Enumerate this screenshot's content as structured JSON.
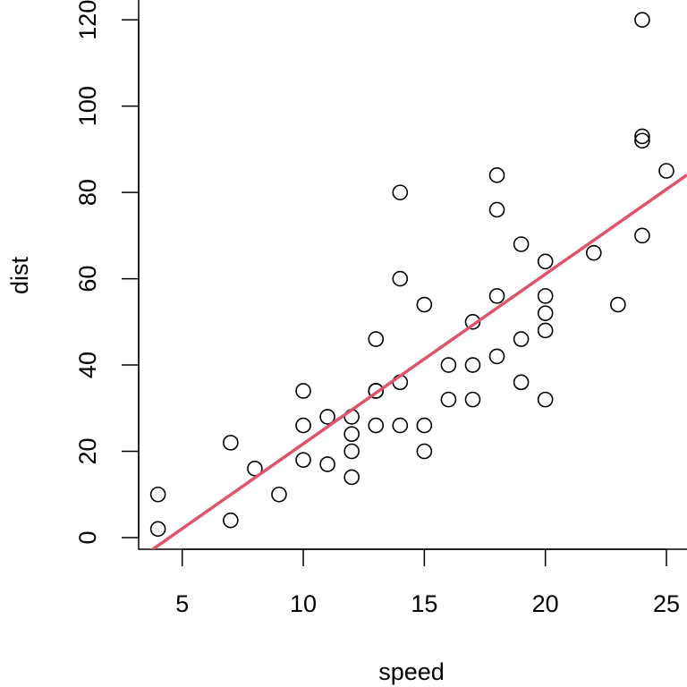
{
  "chart_data": {
    "type": "scatter",
    "title": "",
    "xlabel": "speed",
    "ylabel": "dist",
    "xlim": [
      3.2,
      25.85
    ],
    "ylim": [
      -2.7,
      124.6
    ],
    "x_ticks": [
      5,
      10,
      15,
      20,
      25
    ],
    "y_ticks": [
      0,
      20,
      40,
      60,
      80,
      100,
      120
    ],
    "grid": false,
    "points": {
      "x": [
        4,
        4,
        7,
        7,
        8,
        9,
        10,
        10,
        10,
        11,
        11,
        12,
        12,
        12,
        12,
        13,
        13,
        13,
        13,
        14,
        14,
        14,
        14,
        15,
        15,
        15,
        16,
        16,
        17,
        17,
        17,
        18,
        18,
        18,
        18,
        19,
        19,
        19,
        20,
        20,
        20,
        20,
        20,
        22,
        23,
        24,
        24,
        24,
        24,
        25
      ],
      "y": [
        2,
        10,
        4,
        22,
        16,
        10,
        18,
        26,
        34,
        17,
        28,
        14,
        20,
        24,
        28,
        26,
        34,
        34,
        46,
        26,
        36,
        60,
        80,
        20,
        26,
        54,
        32,
        40,
        32,
        40,
        50,
        42,
        56,
        76,
        84,
        36,
        46,
        68,
        32,
        48,
        52,
        56,
        64,
        66,
        54,
        70,
        92,
        93,
        120,
        85
      ]
    },
    "regression_line": {
      "intercept": -17.579,
      "slope": 3.932,
      "color": "#DF536B"
    }
  }
}
